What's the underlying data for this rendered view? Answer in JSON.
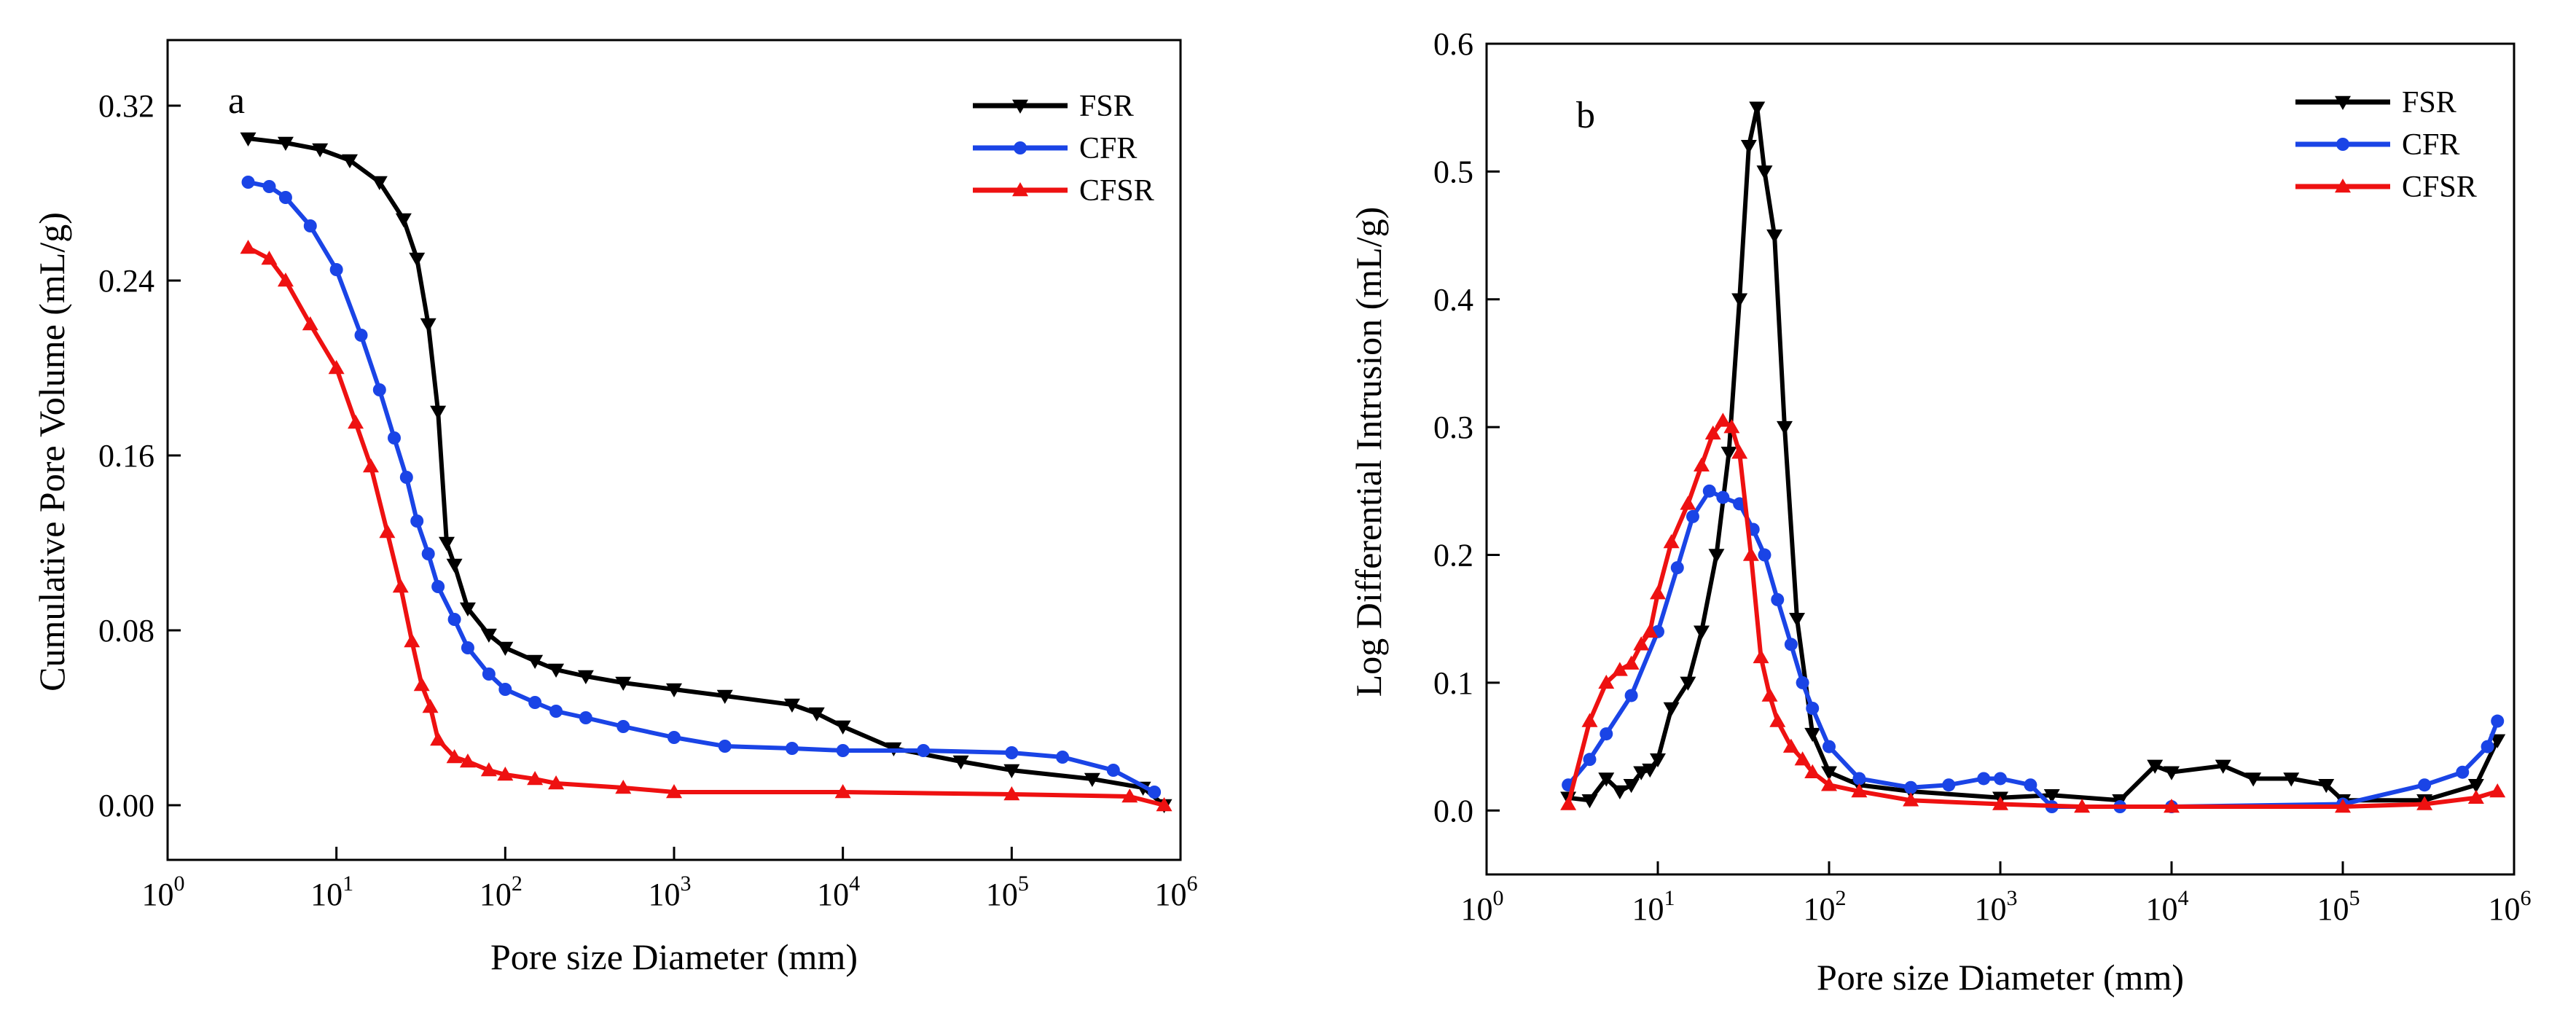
{
  "chart_data": [
    {
      "type": "line",
      "panel_label": "a",
      "xlabel": "Pore size Diameter (mm)",
      "ylabel": "Cumulative Pore Volume  (mL/g)",
      "xscale": "log",
      "xlim": [
        1,
        1000000
      ],
      "ylim": [
        -0.025,
        0.35
      ],
      "x_ticks": [
        {
          "base": "10",
          "exp": "0",
          "value": 1
        },
        {
          "base": "10",
          "exp": "1",
          "value": 10
        },
        {
          "base": "10",
          "exp": "2",
          "value": 100
        },
        {
          "base": "10",
          "exp": "3",
          "value": 1000
        },
        {
          "base": "10",
          "exp": "4",
          "value": 10000
        },
        {
          "base": "10",
          "exp": "5",
          "value": 100000
        },
        {
          "base": "10",
          "exp": "6",
          "value": 1000000
        }
      ],
      "y_ticks": [
        {
          "label": "0.00",
          "value": 0.0
        },
        {
          "label": "0.08",
          "value": 0.08
        },
        {
          "label": "0.16",
          "value": 0.16
        },
        {
          "label": "0.24",
          "value": 0.24
        },
        {
          "label": "0.32",
          "value": 0.32
        }
      ],
      "legend_position": "top-right",
      "series": [
        {
          "name": "FSR",
          "color": "#000000",
          "marker": "triangle-down",
          "x": [
            3,
            5,
            8,
            12,
            18,
            25,
            30,
            35,
            40,
            45,
            50,
            60,
            80,
            100,
            150,
            200,
            300,
            500,
            1000,
            2000,
            5000,
            7000,
            10000,
            20000,
            50000,
            100000,
            300000,
            600000,
            800000
          ],
          "values": [
            0.305,
            0.303,
            0.3,
            0.295,
            0.285,
            0.268,
            0.25,
            0.22,
            0.18,
            0.12,
            0.11,
            0.09,
            0.078,
            0.072,
            0.066,
            0.062,
            0.059,
            0.056,
            0.053,
            0.05,
            0.046,
            0.042,
            0.036,
            0.026,
            0.02,
            0.016,
            0.012,
            0.008,
            0.0
          ]
        },
        {
          "name": "CFR",
          "color": "#1a44e6",
          "marker": "circle",
          "x": [
            3,
            4,
            5,
            7,
            10,
            14,
            18,
            22,
            26,
            30,
            35,
            40,
            50,
            60,
            80,
            100,
            150,
            200,
            300,
            500,
            1000,
            2000,
            5000,
            10000,
            30000,
            100000,
            200000,
            400000,
            700000
          ],
          "values": [
            0.285,
            0.283,
            0.278,
            0.265,
            0.245,
            0.215,
            0.19,
            0.168,
            0.15,
            0.13,
            0.115,
            0.1,
            0.085,
            0.072,
            0.06,
            0.053,
            0.047,
            0.043,
            0.04,
            0.036,
            0.031,
            0.027,
            0.026,
            0.025,
            0.025,
            0.024,
            0.022,
            0.016,
            0.006
          ]
        },
        {
          "name": "CFSR",
          "color": "#ee1111",
          "marker": "triangle-up",
          "x": [
            3,
            4,
            5,
            7,
            10,
            13,
            16,
            20,
            24,
            28,
            32,
            36,
            40,
            50,
            60,
            80,
            100,
            150,
            200,
            500,
            1000,
            10000,
            100000,
            500000,
            800000
          ],
          "values": [
            0.255,
            0.25,
            0.24,
            0.22,
            0.2,
            0.175,
            0.155,
            0.125,
            0.1,
            0.075,
            0.055,
            0.045,
            0.03,
            0.022,
            0.02,
            0.016,
            0.014,
            0.012,
            0.01,
            0.008,
            0.006,
            0.006,
            0.005,
            0.004,
            0.0
          ]
        }
      ]
    },
    {
      "type": "line",
      "panel_label": "b",
      "xlabel": "Pore size Diameter (mm)",
      "ylabel": "Log Differential Intrusion (mL/g)",
      "xscale": "log",
      "xlim": [
        1,
        1000000
      ],
      "ylim": [
        -0.05,
        0.6
      ],
      "x_ticks": [
        {
          "base": "10",
          "exp": "0",
          "value": 1
        },
        {
          "base": "10",
          "exp": "1",
          "value": 10
        },
        {
          "base": "10",
          "exp": "2",
          "value": 100
        },
        {
          "base": "10",
          "exp": "3",
          "value": 1000
        },
        {
          "base": "10",
          "exp": "4",
          "value": 10000
        },
        {
          "base": "10",
          "exp": "5",
          "value": 100000
        },
        {
          "base": "10",
          "exp": "6",
          "value": 1000000
        }
      ],
      "y_ticks": [
        {
          "label": "0.0",
          "value": 0.0
        },
        {
          "label": "0.1",
          "value": 0.1
        },
        {
          "label": "0.2",
          "value": 0.2
        },
        {
          "label": "0.3",
          "value": 0.3
        },
        {
          "label": "0.4",
          "value": 0.4
        },
        {
          "label": "0.5",
          "value": 0.5
        },
        {
          "label": "0.6",
          "value": 0.6
        }
      ],
      "legend_position": "top-right",
      "series": [
        {
          "name": "FSR",
          "color": "#000000",
          "marker": "triangle-down",
          "x": [
            3,
            4,
            5,
            6,
            7,
            8,
            9,
            10,
            12,
            15,
            18,
            22,
            26,
            30,
            34,
            38,
            42,
            48,
            55,
            65,
            80,
            100,
            150,
            300,
            1000,
            2000,
            5000,
            8000,
            10000,
            20000,
            30000,
            50000,
            80000,
            100000,
            300000,
            600000,
            800000
          ],
          "values": [
            0.01,
            0.008,
            0.025,
            0.015,
            0.02,
            0.03,
            0.032,
            0.04,
            0.08,
            0.1,
            0.14,
            0.2,
            0.28,
            0.4,
            0.52,
            0.55,
            0.5,
            0.45,
            0.3,
            0.15,
            0.06,
            0.03,
            0.02,
            0.015,
            0.01,
            0.012,
            0.008,
            0.035,
            0.03,
            0.035,
            0.025,
            0.025,
            0.02,
            0.008,
            0.008,
            0.02,
            0.055
          ]
        },
        {
          "name": "CFR",
          "color": "#1a44e6",
          "marker": "circle",
          "x": [
            3,
            4,
            5,
            7,
            10,
            13,
            16,
            20,
            24,
            30,
            36,
            42,
            50,
            60,
            70,
            80,
            100,
            150,
            300,
            500,
            800,
            1000,
            1500,
            2000,
            5000,
            10000,
            100000,
            300000,
            500000,
            700000,
            800000
          ],
          "values": [
            0.02,
            0.04,
            0.06,
            0.09,
            0.14,
            0.19,
            0.23,
            0.25,
            0.245,
            0.24,
            0.22,
            0.2,
            0.165,
            0.13,
            0.1,
            0.08,
            0.05,
            0.025,
            0.018,
            0.02,
            0.025,
            0.025,
            0.02,
            0.003,
            0.003,
            0.003,
            0.005,
            0.02,
            0.03,
            0.05,
            0.07
          ]
        },
        {
          "name": "CFSR",
          "color": "#ee1111",
          "marker": "triangle-up",
          "x": [
            3,
            4,
            5,
            6,
            7,
            8,
            9,
            10,
            12,
            15,
            18,
            21,
            24,
            27,
            30,
            35,
            40,
            45,
            50,
            60,
            70,
            80,
            100,
            150,
            300,
            1000,
            3000,
            10000,
            100000,
            300000,
            600000,
            800000
          ],
          "values": [
            0.005,
            0.07,
            0.1,
            0.11,
            0.115,
            0.13,
            0.14,
            0.17,
            0.21,
            0.24,
            0.27,
            0.295,
            0.305,
            0.3,
            0.28,
            0.2,
            0.12,
            0.09,
            0.07,
            0.05,
            0.04,
            0.03,
            0.02,
            0.015,
            0.008,
            0.005,
            0.003,
            0.003,
            0.003,
            0.005,
            0.01,
            0.015
          ]
        }
      ]
    }
  ]
}
